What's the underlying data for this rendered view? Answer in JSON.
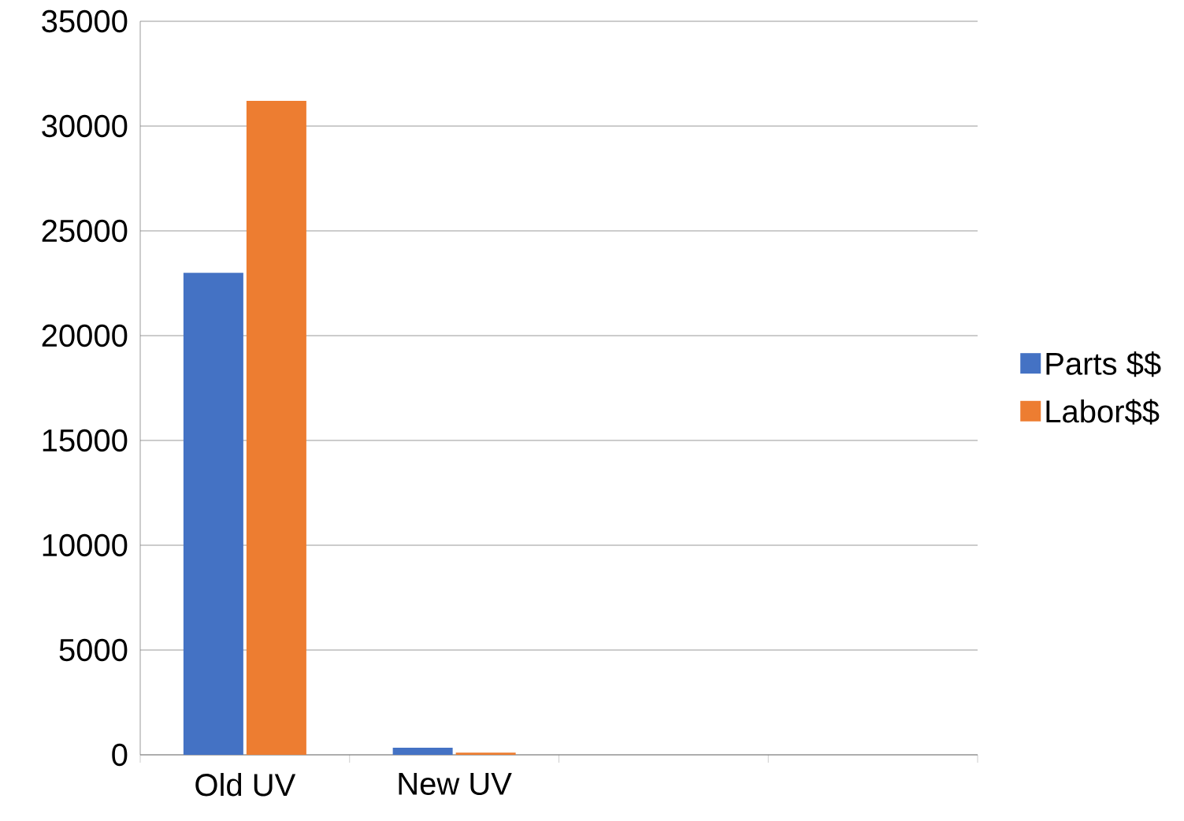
{
  "chart_data": {
    "type": "bar",
    "categories": [
      "Old UV",
      "New UV",
      null,
      null
    ],
    "series": [
      {
        "name": "Parts $$",
        "color": "#4472c4",
        "values": [
          23000,
          340,
          null,
          null
        ]
      },
      {
        "name": "Labor$$",
        "color": "#ed7d31",
        "values": [
          31200,
          100,
          null,
          null
        ]
      }
    ],
    "ylim": [
      0,
      35000
    ],
    "yticks": [
      0,
      5000,
      10000,
      15000,
      20000,
      25000,
      30000,
      35000
    ],
    "grid": "y",
    "legend": "right"
  }
}
